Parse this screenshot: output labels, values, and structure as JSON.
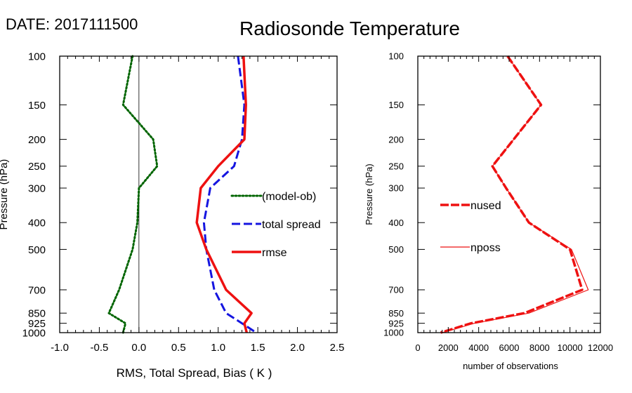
{
  "date_label": "DATE: 2017111500",
  "title": "Radiosonde Temperature",
  "chart_data": [
    {
      "type": "line",
      "ylabel": "Pressure (hPa)",
      "xlabel": "RMS, Total Spread, Bias ( K )",
      "xlim": [
        -1.0,
        2.5
      ],
      "ylim": [
        1000,
        100
      ],
      "yscale": "log",
      "xticks": [
        -1.0,
        -0.5,
        0.0,
        0.5,
        1.0,
        1.5,
        2.0,
        2.5
      ],
      "xtick_labels": [
        "-1.0",
        "-0.5",
        "0.0",
        "0.5",
        "1.0",
        "1.5",
        "2.0",
        "2.5"
      ],
      "yticks": [
        100,
        150,
        200,
        250,
        300,
        400,
        500,
        700,
        850,
        925,
        1000
      ],
      "ytick_labels": [
        "100",
        "150",
        "200",
        "250",
        "300",
        "400",
        "500",
        "700",
        "850",
        "925",
        "1000"
      ],
      "zero_line": 0,
      "legend_placement": "right-middle",
      "series": [
        {
          "name": "(model-ob)",
          "color": "#006400",
          "style": "dotted",
          "points": [
            [
              -0.08,
              100
            ],
            [
              -0.2,
              150
            ],
            [
              0.18,
              200
            ],
            [
              0.23,
              250
            ],
            [
              0.0,
              300
            ],
            [
              -0.02,
              400
            ],
            [
              -0.08,
              500
            ],
            [
              -0.25,
              700
            ],
            [
              -0.38,
              850
            ],
            [
              -0.17,
              925
            ],
            [
              -0.2,
              1000
            ]
          ]
        },
        {
          "name": "total spread",
          "color": "#1515e0",
          "style": "dashed",
          "points": [
            [
              1.25,
              100
            ],
            [
              1.33,
              150
            ],
            [
              1.3,
              200
            ],
            [
              1.2,
              250
            ],
            [
              0.9,
              300
            ],
            [
              0.82,
              400
            ],
            [
              0.85,
              500
            ],
            [
              0.95,
              700
            ],
            [
              1.1,
              850
            ],
            [
              1.3,
              925
            ],
            [
              1.48,
              1000
            ]
          ]
        },
        {
          "name": "rmse",
          "color": "#ee1111",
          "style": "solid",
          "points": [
            [
              1.32,
              100
            ],
            [
              1.35,
              150
            ],
            [
              1.33,
              200
            ],
            [
              1.0,
              250
            ],
            [
              0.78,
              300
            ],
            [
              0.73,
              400
            ],
            [
              0.85,
              500
            ],
            [
              1.1,
              700
            ],
            [
              1.42,
              850
            ],
            [
              1.33,
              925
            ],
            [
              1.36,
              1000
            ]
          ]
        }
      ]
    },
    {
      "type": "line",
      "ylabel": "Pressure (hPa)",
      "xlabel": "number of observations",
      "xlim": [
        0,
        12000
      ],
      "ylim": [
        1000,
        100
      ],
      "yscale": "log",
      "xticks": [
        0,
        2000,
        4000,
        6000,
        8000,
        10000,
        12000
      ],
      "xtick_labels": [
        "0",
        "2000",
        "4000",
        "6000",
        "8000",
        "10000",
        "12000"
      ],
      "yticks": [
        100,
        150,
        200,
        250,
        300,
        400,
        500,
        700,
        850,
        925,
        1000
      ],
      "ytick_labels": [
        "100",
        "150",
        "200",
        "250",
        "300",
        "400",
        "500",
        "700",
        "850",
        "925",
        "1000"
      ],
      "legend_placement": "left-middle",
      "series": [
        {
          "name": "nused",
          "color": "#ee1111",
          "style": "thick-dashed",
          "points": [
            [
              5900,
              100
            ],
            [
              8100,
              150
            ],
            [
              6300,
              200
            ],
            [
              4900,
              250
            ],
            [
              5800,
              300
            ],
            [
              7300,
              400
            ],
            [
              10000,
              500
            ],
            [
              10800,
              700
            ],
            [
              7000,
              850
            ],
            [
              3500,
              925
            ],
            [
              1500,
              1000
            ]
          ]
        },
        {
          "name": "nposs",
          "color": "#ee1111",
          "style": "thin-solid",
          "points": [
            [
              5900,
              100
            ],
            [
              8100,
              150
            ],
            [
              6300,
              200
            ],
            [
              4900,
              250
            ],
            [
              5800,
              300
            ],
            [
              7300,
              400
            ],
            [
              10100,
              500
            ],
            [
              11200,
              700
            ],
            [
              7300,
              850
            ],
            [
              3700,
              925
            ],
            [
              1600,
              1000
            ]
          ]
        }
      ]
    }
  ]
}
